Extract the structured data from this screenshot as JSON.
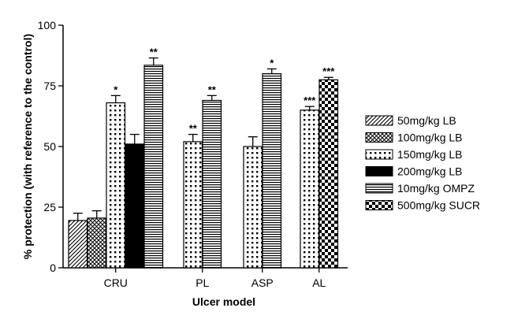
{
  "chart_data": {
    "type": "bar",
    "xlabel": "Ulcer model",
    "ylabel": "% protection (with reference to the control)",
    "ylim": [
      0,
      100
    ],
    "yticks": [
      0,
      25,
      50,
      75,
      100
    ],
    "grid": false,
    "legend_position": "right",
    "groups": [
      {
        "label": "CRU",
        "bars": [
          {
            "series": "50mg/kg LB",
            "value": 19.5,
            "error": 3,
            "sig": ""
          },
          {
            "series": "100mg/kg LB",
            "value": 20.5,
            "error": 3,
            "sig": ""
          },
          {
            "series": "150mg/kg LB",
            "value": 68,
            "error": 3,
            "sig": "*"
          },
          {
            "series": "200mg/kg LB",
            "value": 51,
            "error": 4,
            "sig": ""
          },
          {
            "series": "10mg/kg OMPZ",
            "value": 83.5,
            "error": 3,
            "sig": "**"
          }
        ]
      },
      {
        "label": "PL",
        "bars": [
          {
            "series": "150mg/kg LB",
            "value": 52,
            "error": 3,
            "sig": "**"
          },
          {
            "series": "10mg/kg OMPZ",
            "value": 69,
            "error": 2,
            "sig": "**"
          }
        ]
      },
      {
        "label": "ASP",
        "bars": [
          {
            "series": "150mg/kg LB",
            "value": 50,
            "error": 4,
            "sig": ""
          },
          {
            "series": "10mg/kg OMPZ",
            "value": 80,
            "error": 2,
            "sig": "*"
          }
        ]
      },
      {
        "label": "AL",
        "bars": [
          {
            "series": "150mg/kg LB",
            "value": 65,
            "error": 1.5,
            "sig": "***"
          },
          {
            "series": "500mg/kg SUCR",
            "value": 77.5,
            "error": 1,
            "sig": "***"
          }
        ]
      }
    ],
    "series": [
      {
        "name": "50mg/kg LB",
        "pattern": "diagonal"
      },
      {
        "name": "100mg/kg LB",
        "pattern": "crosshatch"
      },
      {
        "name": "150mg/kg LB",
        "pattern": "dots"
      },
      {
        "name": "200mg/kg LB",
        "pattern": "solid"
      },
      {
        "name": "10mg/kg OMPZ",
        "pattern": "hlines"
      },
      {
        "name": "500mg/kg SUCR",
        "pattern": "checker"
      }
    ]
  }
}
